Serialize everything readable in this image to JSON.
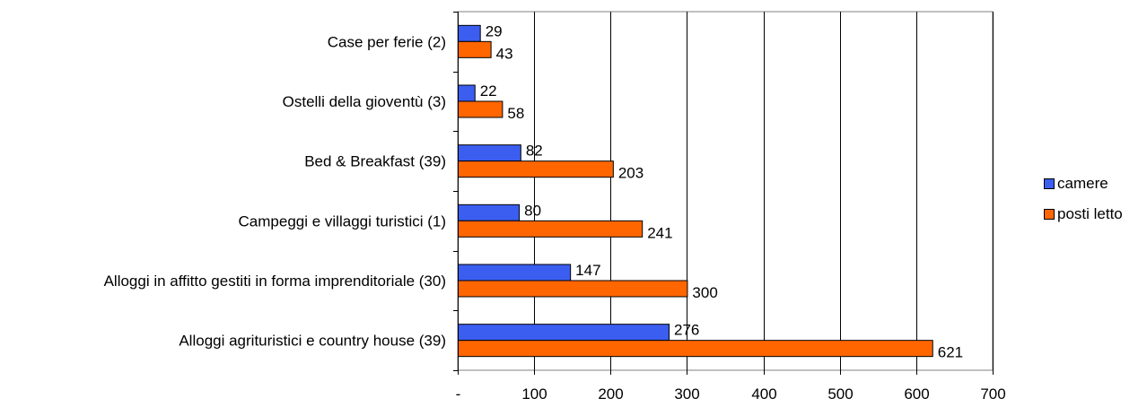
{
  "chart_data": {
    "type": "bar",
    "orientation": "horizontal",
    "categories": [
      "Case per ferie (2)",
      "Ostelli della gioventù (3)",
      "Bed & Breakfast (39)",
      "Campeggi e villaggi turistici (1)",
      "Alloggi in affitto gestiti in forma imprenditoriale (30)",
      "Alloggi agrituristici e country house (39)"
    ],
    "series": [
      {
        "name": "camere",
        "values": [
          29,
          22,
          82,
          80,
          147,
          276
        ],
        "color": "#3b5ef0"
      },
      {
        "name": "posti letto",
        "values": [
          43,
          58,
          203,
          241,
          300,
          621
        ],
        "color": "#ff6600"
      }
    ],
    "xlim": [
      0,
      700
    ],
    "xticks": [
      "-",
      "100",
      "200",
      "300",
      "400",
      "500",
      "600",
      "700"
    ],
    "grid": "vertical",
    "legend_position": "right"
  }
}
